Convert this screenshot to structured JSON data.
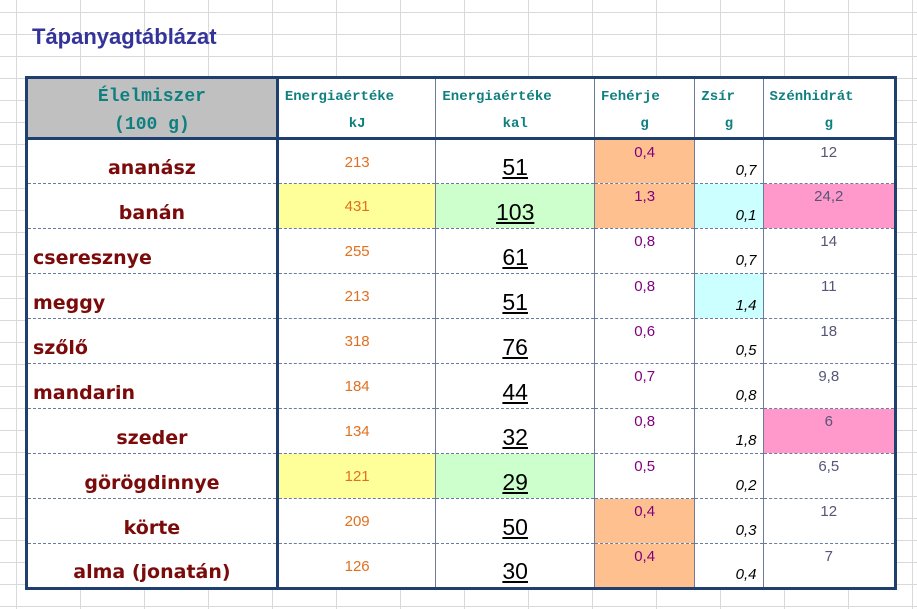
{
  "title": "Tápanyagtáblázat",
  "headers": {
    "food": [
      "Élelmiszer",
      "(100 g)"
    ],
    "kj": [
      "Energiaértéke",
      "kJ"
    ],
    "kal": [
      "Energiaértéke",
      "kal"
    ],
    "feherje": [
      "Fehérje",
      "g"
    ],
    "zsir": [
      "Zsír",
      "g"
    ],
    "szenhidrat": [
      "Szénhidrát",
      "g"
    ]
  },
  "colors": {
    "yellow": "#ffff99",
    "green": "#ccffcc",
    "orange": "#ffc090",
    "cyan": "#ccffff",
    "pink": "#ff99cc"
  },
  "rows": [
    {
      "name": "ananász",
      "align": "center",
      "kj": "213",
      "kal": "51",
      "feherje": "0,4",
      "zsir": "0,7",
      "szenhidrat": "12",
      "bg": {
        "feherje": "orange"
      }
    },
    {
      "name": "banán",
      "align": "center",
      "kj": "431",
      "kal": "103",
      "feherje": "1,3",
      "zsir": "0,1",
      "szenhidrat": "24,2",
      "bg": {
        "kj": "yellow",
        "kal": "green",
        "feherje": "orange",
        "zsir": "cyan",
        "szenhidrat": "pink"
      }
    },
    {
      "name": "cseresznye",
      "align": "left",
      "kj": "255",
      "kal": "61",
      "feherje": "0,8",
      "zsir": "0,7",
      "szenhidrat": "14",
      "bg": {}
    },
    {
      "name": "meggy",
      "align": "left",
      "kj": "213",
      "kal": "51",
      "feherje": "0,8",
      "zsir": "1,4",
      "szenhidrat": "11",
      "bg": {
        "zsir": "cyan"
      }
    },
    {
      "name": "szőlő",
      "align": "left",
      "kj": "318",
      "kal": "76",
      "feherje": "0,6",
      "zsir": "0,5",
      "szenhidrat": "18",
      "bg": {}
    },
    {
      "name": "mandarin",
      "align": "left",
      "kj": "184",
      "kal": "44",
      "feherje": "0,7",
      "zsir": "0,8",
      "szenhidrat": "9,8",
      "bg": {}
    },
    {
      "name": "szeder",
      "align": "center",
      "kj": "134",
      "kal": "32",
      "feherje": "0,8",
      "zsir": "1,8",
      "szenhidrat": "6",
      "bg": {
        "szenhidrat": "pink"
      }
    },
    {
      "name": "görögdinnye",
      "align": "center",
      "kj": "121",
      "kal": "29",
      "feherje": "0,5",
      "zsir": "0,2",
      "szenhidrat": "6,5",
      "bg": {
        "kj": "yellow",
        "kal": "green"
      }
    },
    {
      "name": "körte",
      "align": "center",
      "kj": "209",
      "kal": "50",
      "feherje": "0,4",
      "zsir": "0,3",
      "szenhidrat": "12",
      "bg": {
        "feherje": "orange"
      }
    },
    {
      "name": "alma (jonatán)",
      "align": "center",
      "kj": "126",
      "kal": "30",
      "feherje": "0,4",
      "zsir": "0,4",
      "szenhidrat": "7",
      "bg": {
        "feherje": "orange"
      }
    }
  ]
}
